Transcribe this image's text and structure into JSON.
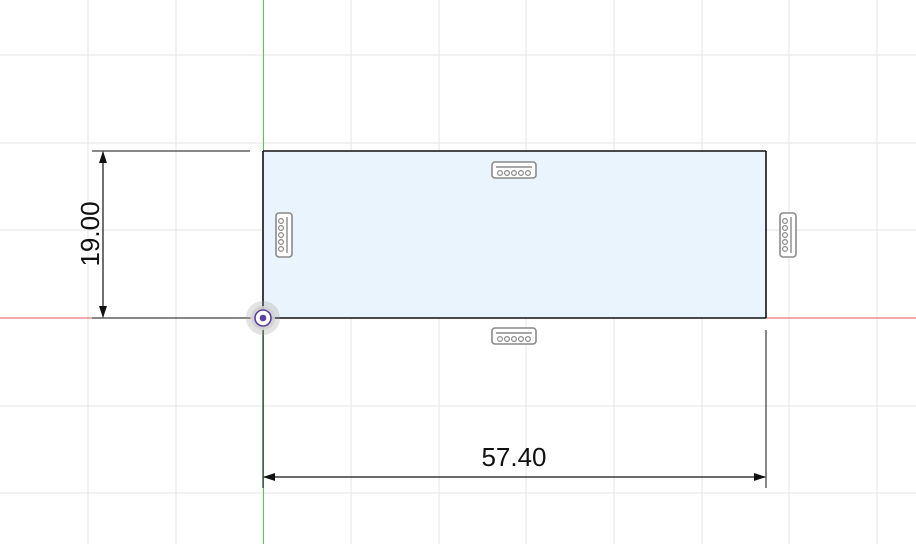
{
  "sketch": {
    "dimensions": {
      "height_value": "19.00",
      "width_value": "57.40"
    },
    "constraints": {
      "top_edge": "horizontal",
      "bottom_edge": "horizontal",
      "left_edge": "vertical",
      "right_edge": "vertical"
    },
    "colors": {
      "background": "#ffffff",
      "grid_line": "#e6e6e6",
      "x_axis": "#e05a5a",
      "y_axis": "#4fd14f",
      "profile_fill": "#eaf4fc",
      "profile_edge": "#111111",
      "dimension_line": "#111111",
      "constraint_icon": "#8a8a8a",
      "origin_point": "#5b3fa5"
    }
  }
}
